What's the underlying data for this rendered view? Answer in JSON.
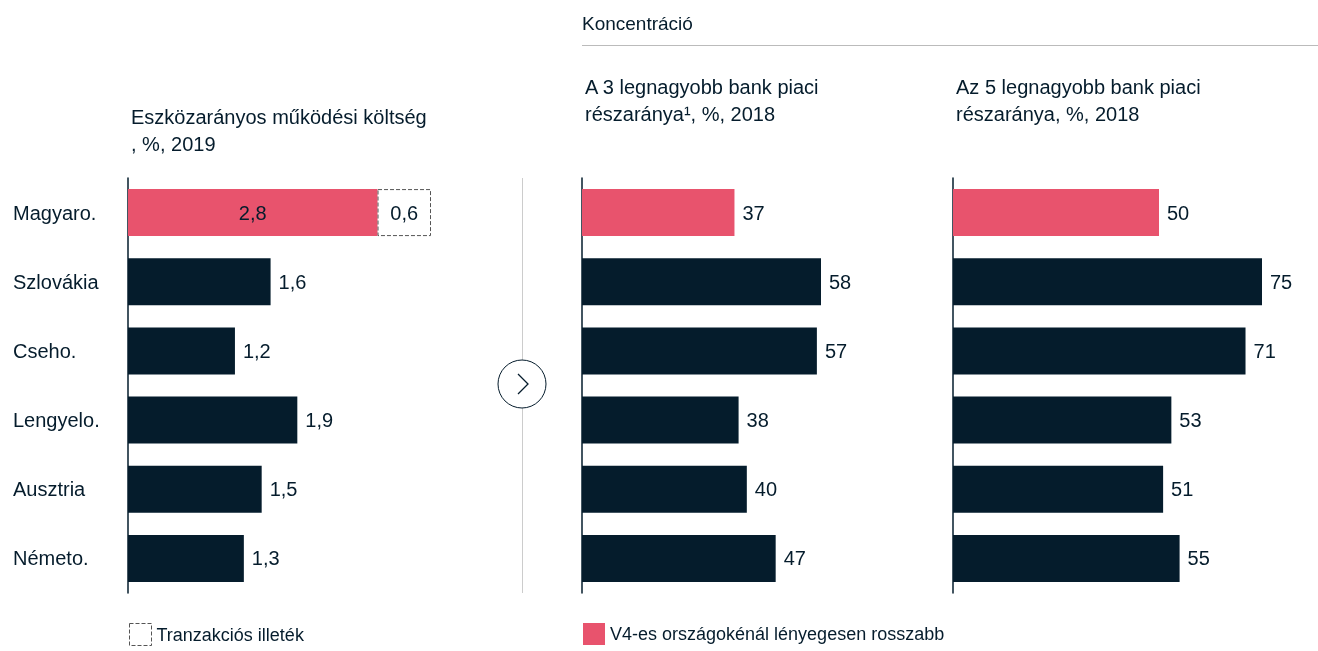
{
  "chart_data": [
    {
      "type": "bar",
      "orientation": "horizontal",
      "stacked": true,
      "title": "Eszközarányos működési költség, %, 2019",
      "categories": [
        "Magyaro.",
        "Szlovákia",
        "Cseho.",
        "Lengyelo.",
        "Ausztria",
        "Németo."
      ],
      "tick_labels": "y",
      "legend": "bottom",
      "series": [
        {
          "color": "#e8536d",
          "values": [
            2.8,
            null,
            null,
            null,
            null,
            null
          ],
          "value_labels": [
            "2,8",
            null,
            null,
            null,
            null,
            null
          ]
        },
        {
          "color": "#051c2c",
          "values": [
            null,
            1.6,
            1.2,
            1.9,
            1.5,
            1.3
          ],
          "value_labels": [
            null,
            "1,6",
            "1,2",
            "1,9",
            "1,5",
            "1,3"
          ]
        },
        {
          "name": "Tranzakciós illeték",
          "color": "#ffffff",
          "line_style": "dashed",
          "values": [
            0.6,
            null,
            null,
            null,
            null,
            null
          ],
          "value_labels": [
            "0,6",
            null,
            null,
            null,
            null,
            null
          ]
        }
      ]
    },
    {
      "type": "bar",
      "orientation": "horizontal",
      "stacked": true,
      "title": "A 3 legnagyobb bank piaci részaránya¹, %, 2018",
      "annotations": [
        "Koncentráció"
      ],
      "categories": [
        null,
        null,
        null,
        null,
        null,
        null
      ],
      "tick_labels": false,
      "legend": "bottom",
      "data_labels": true,
      "series": [
        {
          "name": "V4-es országokénál lényegesen rosszabb",
          "color": "#e8536d",
          "values": [
            37,
            null,
            null,
            null,
            null,
            null
          ]
        },
        {
          "color": "#051c2c",
          "values": [
            null,
            58,
            57,
            38,
            40,
            47
          ]
        }
      ]
    },
    {
      "type": "bar",
      "orientation": "horizontal",
      "stacked": true,
      "title": "Az 5 legnagyobb bank piaci részaránya, %, 2018",
      "categories": [
        null,
        null,
        null,
        null,
        null,
        null
      ],
      "tick_labels": false,
      "data_labels": true,
      "series": [
        {
          "color": "#e8536d",
          "values": [
            50,
            null,
            null,
            null,
            null,
            null
          ]
        },
        {
          "color": "#051c2c",
          "values": [
            null,
            75,
            71,
            53,
            51,
            55
          ]
        }
      ]
    }
  ]
}
